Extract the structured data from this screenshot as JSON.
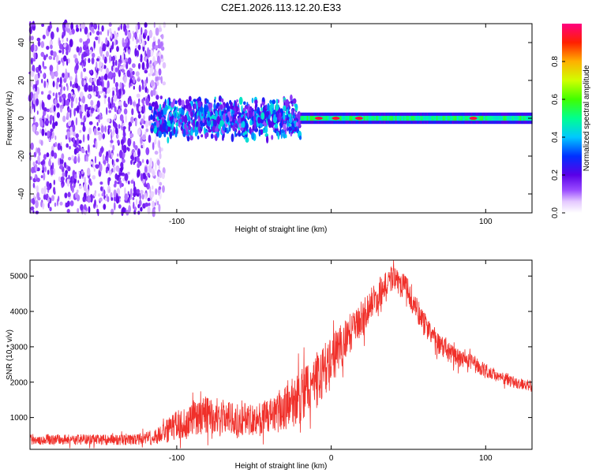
{
  "figure_title": "C2E1.2026.113.12.20.E33",
  "colors": {
    "snr_line": "#f0302a",
    "axis": "#000000",
    "spectrogram_bg": "#ffffff"
  },
  "chart_data": [
    {
      "type": "heatmap",
      "xlabel": "Height of straight line (km)",
      "ylabel": "Frequency (Hz)",
      "xlim": [
        -195,
        130
      ],
      "ylim": [
        -50,
        50
      ],
      "xticks": [
        -100,
        0,
        100
      ],
      "xtick_labels": [
        "-100",
        "",
        "100"
      ],
      "yticks": [
        -40,
        -20,
        0,
        20,
        40
      ],
      "ytick_labels": [
        "-40",
        "-20",
        "0",
        "20",
        "40"
      ],
      "colorbar": {
        "label": "Normalized spectral amplitude",
        "range": [
          0.0,
          1.0
        ],
        "ticks": [
          0.0,
          0.2,
          0.4,
          0.6,
          0.8
        ],
        "tick_labels": [
          "0.0",
          "0.2",
          "0.4",
          "0.6",
          "0.8"
        ]
      },
      "regions": [
        {
          "name": "noise",
          "x": [
            -195,
            -108
          ],
          "freq_spread": 50,
          "amplitude": 0.15
        },
        {
          "name": "turbulent",
          "x": [
            -117,
            -20
          ],
          "freq_spread": 12,
          "amplitude": 0.35
        },
        {
          "name": "narrow-band",
          "x": [
            -20,
            130
          ],
          "freq_spread": 3,
          "amplitude": 0.5
        }
      ],
      "hot_spots_x_km": [
        -8,
        3,
        18,
        92
      ]
    },
    {
      "type": "line",
      "xlabel": "Height of straight line (km)",
      "ylabel": "SNR (10 * v/v)",
      "xlim": [
        -195,
        130
      ],
      "ylim": [
        100,
        5450
      ],
      "xticks": [
        -100,
        0,
        100
      ],
      "xtick_labels": [
        "-100",
        "0",
        "100"
      ],
      "yticks": [
        1000,
        2000,
        3000,
        4000,
        5000
      ],
      "ytick_labels": [
        "1000",
        "2000",
        "3000",
        "4000",
        "5000"
      ],
      "series": [
        {
          "name": "SNR",
          "envelope_x": [
            -195,
            -130,
            -115,
            -100,
            -80,
            -60,
            -40,
            -20,
            -10,
            0,
            10,
            20,
            30,
            40,
            50,
            60,
            70,
            80,
            90,
            100,
            110,
            120,
            130
          ],
          "envelope_y": [
            400,
            380,
            450,
            800,
            1150,
            1000,
            1050,
            1650,
            2100,
            2700,
            3300,
            3900,
            4500,
            5000,
            4600,
            3700,
            3100,
            2750,
            2600,
            2350,
            2150,
            2000,
            1900
          ],
          "noise": [
            150,
            150,
            200,
            450,
            550,
            450,
            500,
            800,
            800,
            700,
            600,
            500,
            450,
            350,
            400,
            350,
            300,
            250,
            220,
            200,
            180,
            170,
            160
          ]
        }
      ]
    }
  ]
}
